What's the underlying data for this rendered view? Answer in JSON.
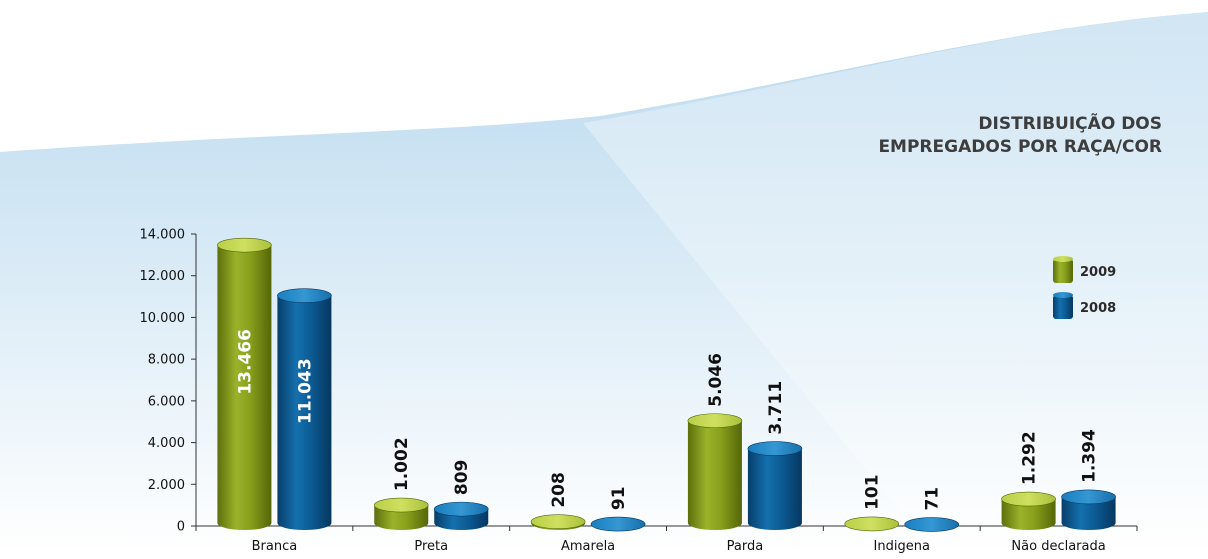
{
  "chart_data": {
    "type": "bar",
    "title": "DISTRIBUIÇÃO DOS\nEMPREGADOS POR RAÇA/COR",
    "categories": [
      "Branca",
      "Preta",
      "Amarela",
      "Parda",
      "Indigena",
      "Não declarada"
    ],
    "series": [
      {
        "name": "2009",
        "values": [
          13466,
          1002,
          208,
          5046,
          101,
          1292
        ],
        "labels": [
          "13.466",
          "1.002",
          "208",
          "5.046",
          "101",
          "1.292"
        ],
        "color": "#8fa71d"
      },
      {
        "name": "2008",
        "values": [
          11043,
          809,
          91,
          3711,
          71,
          1394
        ],
        "labels": [
          "11.043",
          "809",
          "91",
          "3.711",
          "71",
          "1.394"
        ],
        "color": "#0f5f9a"
      }
    ],
    "ylim": [
      0,
      14000
    ],
    "yticks": [
      0,
      2000,
      4000,
      6000,
      8000,
      10000,
      12000,
      14000
    ],
    "ytick_labels": [
      "0",
      "2.000",
      "4.000",
      "6.000",
      "8.000",
      "10.000",
      "12.000",
      "14.000"
    ],
    "xlabel": "",
    "ylabel": "",
    "grid": false,
    "legend": "right"
  }
}
